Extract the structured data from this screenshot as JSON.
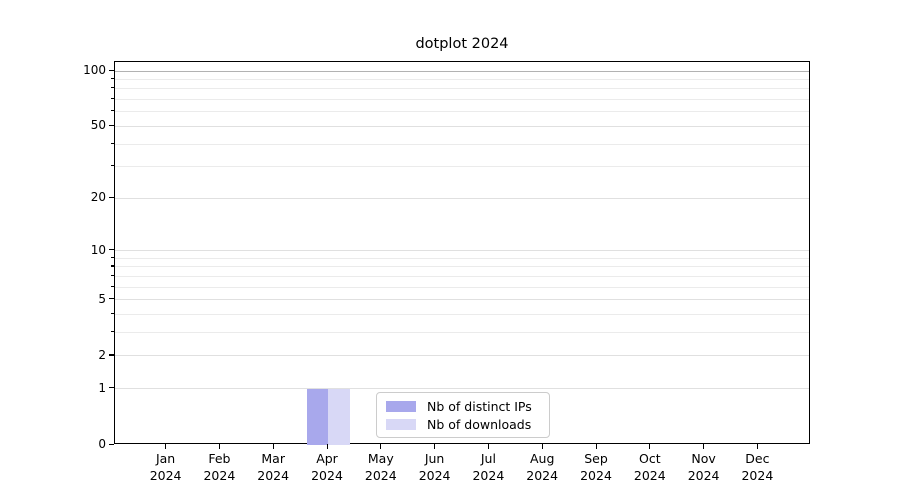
{
  "title": "dotplot 2024",
  "chart_data": {
    "type": "bar",
    "title": "dotplot 2024",
    "categories": [
      "Jan",
      "Feb",
      "Mar",
      "Apr",
      "May",
      "Jun",
      "Jul",
      "Aug",
      "Sep",
      "Oct",
      "Nov",
      "Dec"
    ],
    "year_label": "2024",
    "series": [
      {
        "name": "Nb of distinct IPs",
        "color": "#a8a8ec",
        "values": [
          0,
          0,
          0,
          1,
          0,
          0,
          0,
          0,
          0,
          0,
          0,
          0
        ]
      },
      {
        "name": "Nb of downloads",
        "color": "#d8d8f6",
        "values": [
          0,
          0,
          0,
          1,
          0,
          0,
          0,
          0,
          0,
          0,
          0,
          0
        ]
      }
    ],
    "y_axis": {
      "scale": "log1p",
      "ticks": [
        0,
        1,
        2,
        5,
        10,
        20,
        50,
        100
      ],
      "minor_ticks": [
        3,
        4,
        6,
        7,
        8,
        9,
        30,
        40,
        60,
        70,
        80,
        90
      ],
      "range_top": 112
    },
    "x_axis": {
      "tick_label_format": "month over year, two lines"
    },
    "grid": {
      "minor_color": "#ebebeb",
      "major_color": "#e0e0e0",
      "hundred_line_color": "#b2b2b2"
    },
    "legend": {
      "position": "bottom-center",
      "entries": [
        "Nb of distinct IPs",
        "Nb of downloads"
      ]
    },
    "colors": {
      "bar_distinct_ips": "#a8a8ec",
      "bar_downloads": "#d8d8f6",
      "axis": "#000000",
      "background": "#ffffff"
    }
  }
}
